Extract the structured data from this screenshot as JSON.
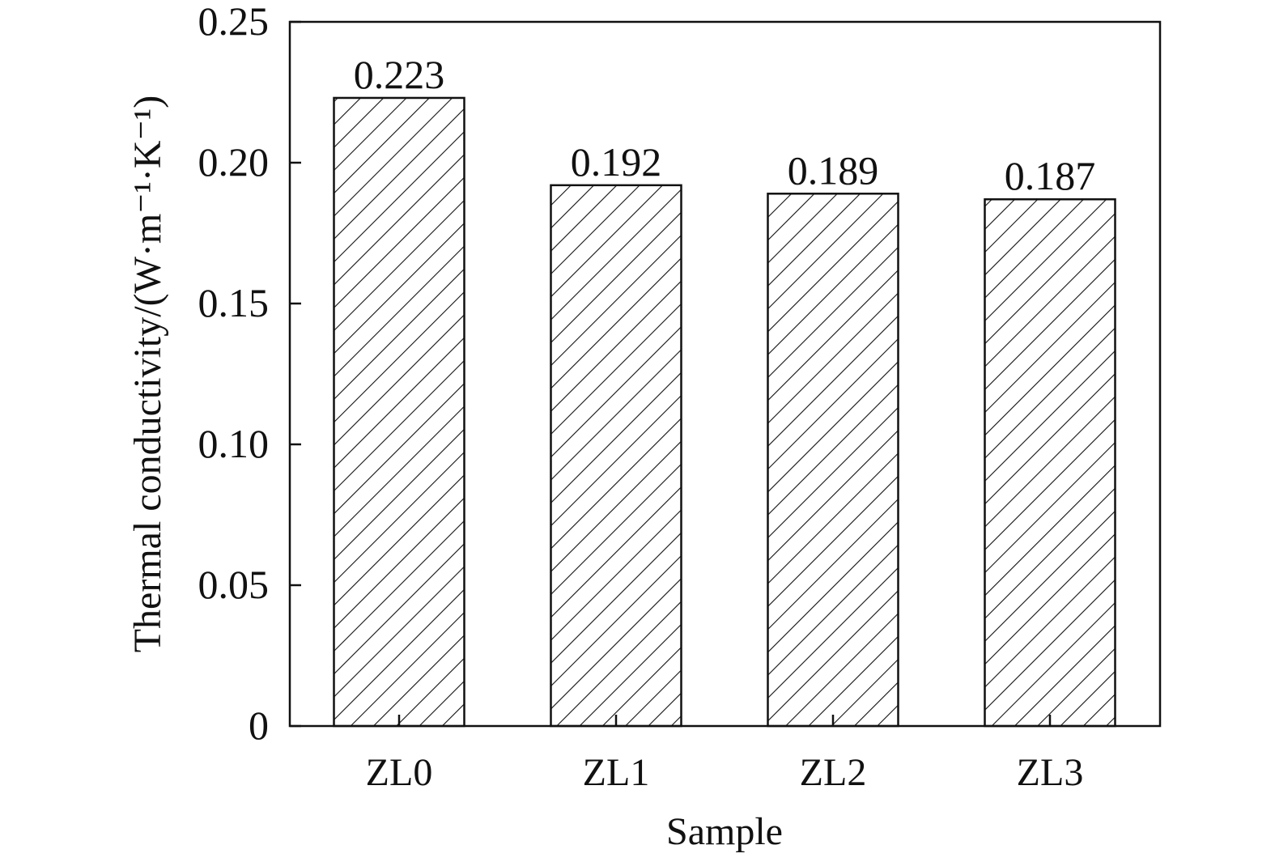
{
  "chart_data": {
    "type": "bar",
    "title": "",
    "xlabel": "Sample",
    "ylabel": "Thermal conductivity/(W·m⁻¹·K⁻¹)",
    "categories": [
      "ZL0",
      "ZL1",
      "ZL2",
      "ZL3"
    ],
    "values": [
      0.223,
      0.192,
      0.189,
      0.187
    ],
    "value_labels": [
      "0.223",
      "0.192",
      "0.189",
      "0.187"
    ],
    "ylim": [
      0,
      0.25
    ],
    "yticks": [
      0,
      0.05,
      0.1,
      0.15,
      0.2,
      0.25
    ],
    "ytick_labels": [
      "0",
      "0.05",
      "0.10",
      "0.15",
      "0.20",
      "0.25"
    ],
    "grid": false,
    "bar_fill": "diagonal-hatch",
    "colors": {
      "axis": "#111111",
      "bar_stroke": "#111111",
      "hatch": "#111111",
      "background": "#ffffff"
    }
  }
}
